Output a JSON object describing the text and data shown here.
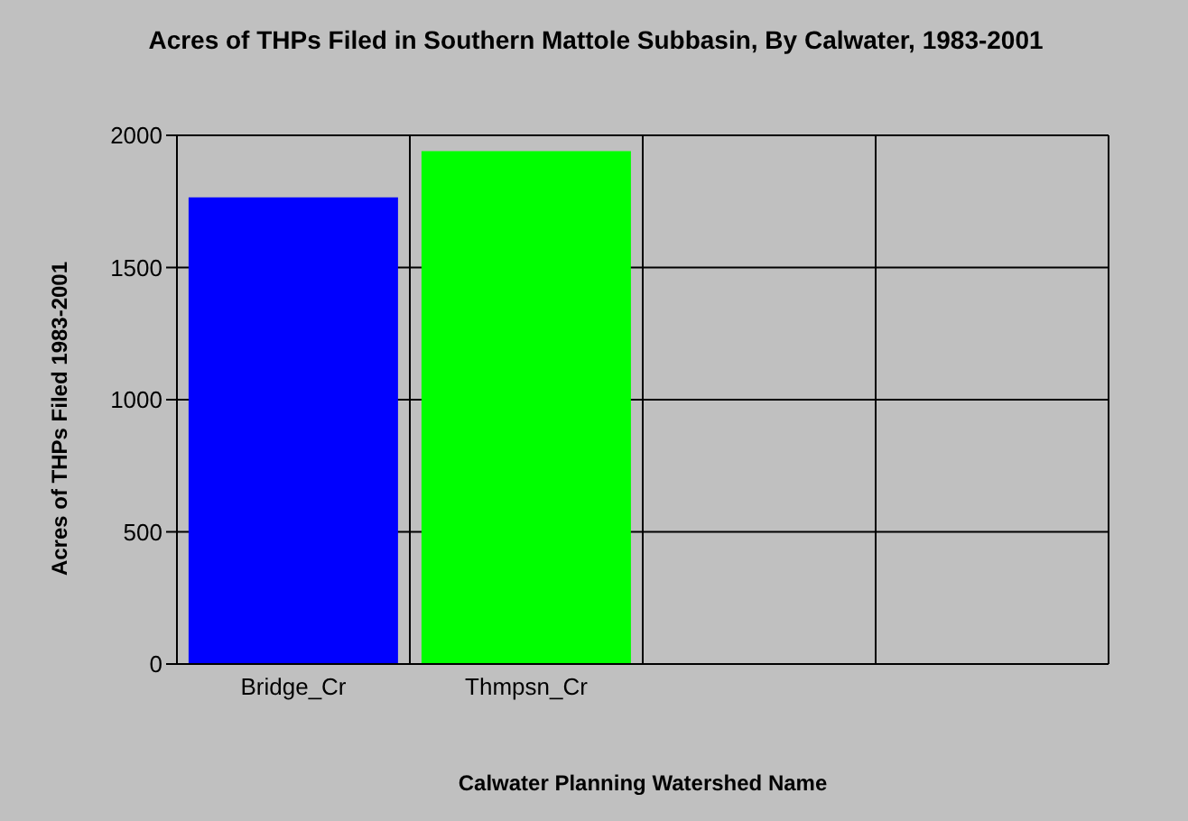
{
  "chart_data": {
    "type": "bar",
    "title": "Acres of THPs Filed in Southern Mattole Subbasin, By Calwater, 1983-2001",
    "xlabel": "Calwater Planning Watershed Name",
    "ylabel": "Acres of THPs Filed 1983-2001",
    "categories": [
      "Bridge_Cr",
      "Thmpsn_Cr",
      null,
      null
    ],
    "colors": [
      "#0000ff",
      "#00ff00",
      null,
      null
    ],
    "values": [
      1765,
      1940,
      null,
      null
    ],
    "ylim": [
      0,
      2000
    ],
    "yticks": [
      0,
      500,
      1000,
      1500,
      2000
    ],
    "grid": true,
    "legend": false
  }
}
